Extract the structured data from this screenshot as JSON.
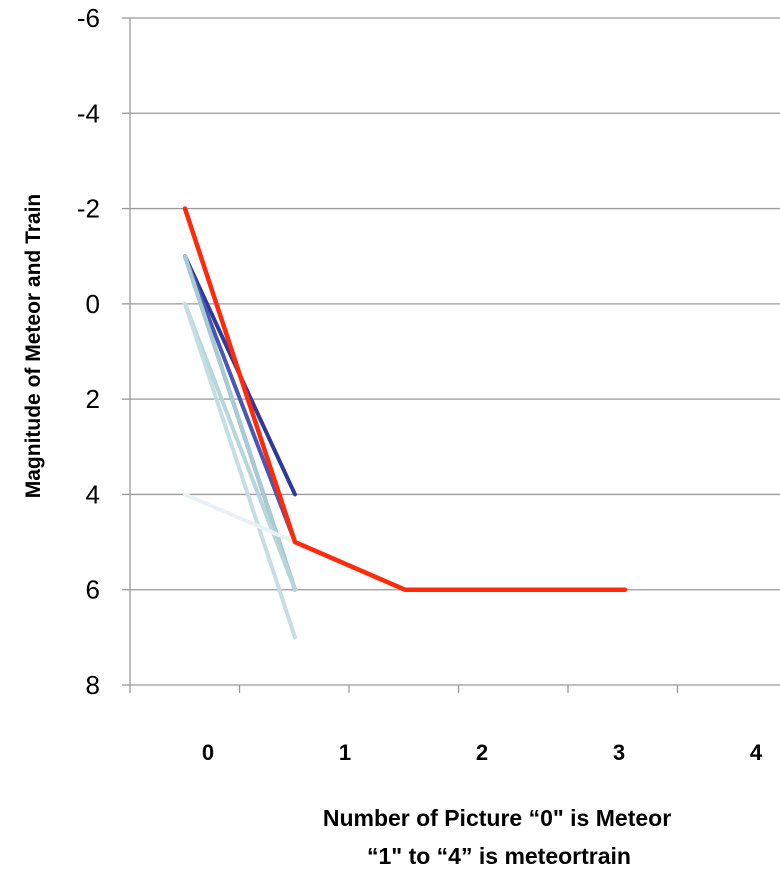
{
  "chart_data": {
    "type": "line",
    "ylabel": "Magnitude of Meteor and Train",
    "xlabel_lines": [
      "Number of Picture “0\" is Meteor",
      "“1\" to “4” is meteortrain"
    ],
    "ylim": [
      -6,
      8
    ],
    "y_inverted": true,
    "y_ticks": [
      "-6",
      "-4",
      "-2",
      "0",
      "2",
      "4",
      "6",
      "8"
    ],
    "x_categories": [
      "0",
      "1",
      "2",
      "3",
      "4"
    ],
    "grid": "horizontal",
    "series": [
      {
        "color": "#2e3a9a",
        "x": [
          0,
          1
        ],
        "y": [
          -1,
          4
        ]
      },
      {
        "color": "#3c48a8",
        "x": [
          0,
          1
        ],
        "y": [
          -1,
          6
        ]
      },
      {
        "color": "#4a56b4",
        "x": [
          0,
          1
        ],
        "y": [
          -1,
          5
        ]
      },
      {
        "color": "#a8ccd4",
        "x": [
          0,
          1
        ],
        "y": [
          -1,
          6
        ]
      },
      {
        "color": "#b6d6dc",
        "x": [
          0,
          1
        ],
        "y": [
          0,
          6
        ]
      },
      {
        "color": "#c4dfe4",
        "x": [
          0,
          1
        ],
        "y": [
          0,
          7
        ]
      },
      {
        "color": "#e8f2f4",
        "x": [
          0,
          1
        ],
        "y": [
          4,
          5
        ]
      },
      {
        "color": "#ff2a0a",
        "x": [
          0,
          1,
          2,
          3,
          4
        ],
        "y": [
          -2,
          5,
          6,
          6,
          6
        ]
      }
    ]
  }
}
